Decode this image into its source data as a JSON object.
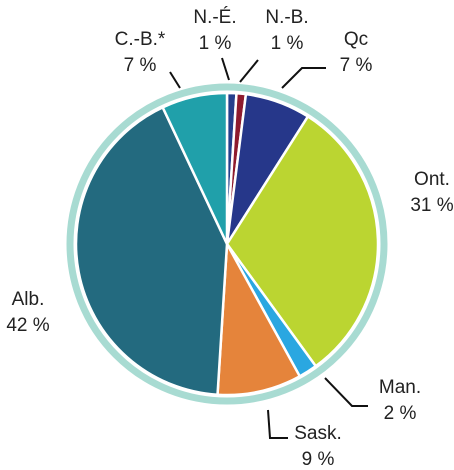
{
  "chart_data": {
    "type": "pie",
    "categories": [
      "N.-É.",
      "N.-B.",
      "Qc",
      "Ont.",
      "Man.",
      "Sask.",
      "Alb.",
      "C.-B.*"
    ],
    "values": [
      1,
      1,
      7,
      31,
      2,
      9,
      42,
      7
    ],
    "value_labels": [
      "1 %",
      "1 %",
      "7 %",
      "31 %",
      "2 %",
      "9 %",
      "42 %",
      "7 %"
    ],
    "colors": [
      "#243f8c",
      "#8e1b2e",
      "#26378a",
      "#bbd531",
      "#2aa7e1",
      "#e5843b",
      "#236a7f",
      "#20a0aa"
    ]
  }
}
